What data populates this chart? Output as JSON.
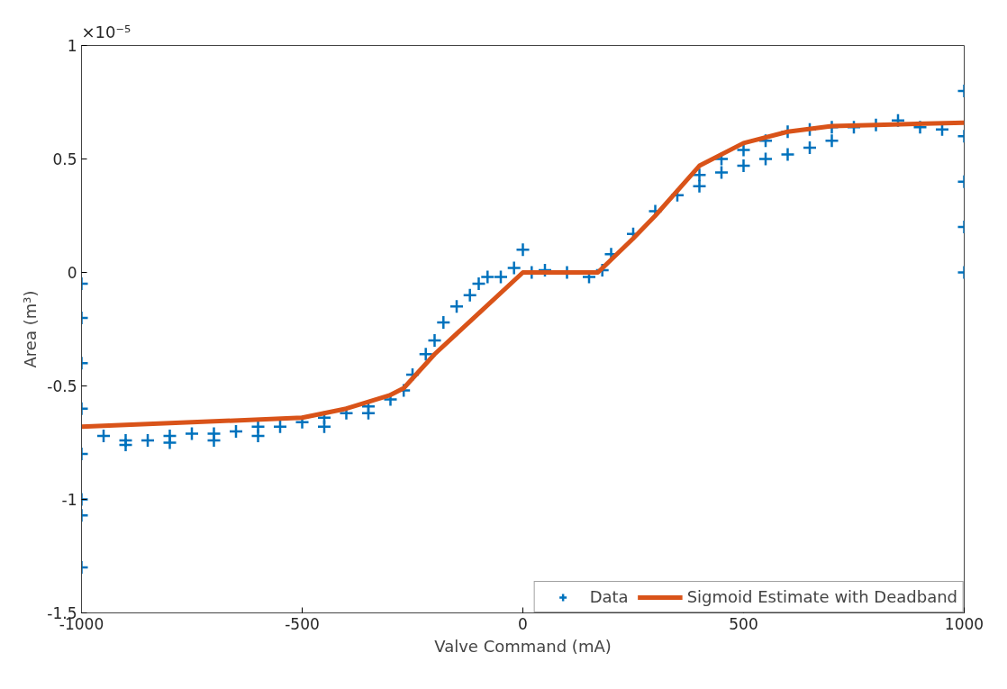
{
  "chart_data": {
    "type": "scatter",
    "xlabel": "Valve Command (mA)",
    "ylabel": "Area (m³)",
    "annotations": [
      "×10⁻⁵"
    ],
    "xlim": [
      -1000,
      1000
    ],
    "xticks": [
      -1000,
      -500,
      0,
      500,
      1000
    ],
    "ylim": [
      -1.5,
      1
    ],
    "yticks": [
      -1.5,
      -1,
      -0.5,
      0,
      0.5,
      1
    ],
    "grid": false,
    "legend": "bottom right",
    "series": [
      {
        "name": "Data",
        "marker": "cross",
        "color": "#0072bd",
        "x": [
          -1000,
          -1000,
          -1000,
          -1000,
          -1000,
          -1000,
          -1000,
          -1000,
          -950,
          -900,
          -850,
          -800,
          -750,
          -700,
          -650,
          -600,
          -550,
          -500,
          -450,
          -400,
          -350,
          -300,
          -270,
          -250,
          -220,
          -200,
          -180,
          -150,
          -120,
          -100,
          -80,
          -50,
          -20,
          0,
          20,
          50,
          100,
          150,
          180,
          200,
          250,
          300,
          350,
          400,
          450,
          500,
          550,
          600,
          650,
          700,
          750,
          800,
          850,
          900,
          950,
          -900,
          -800,
          -700,
          -600,
          -450,
          -350,
          400,
          450,
          500,
          550,
          600,
          650,
          700,
          1000,
          1000,
          1000,
          1000,
          1000
        ],
        "values": [
          -0.05,
          -0.2,
          -0.4,
          -0.6,
          -0.8,
          -1.0,
          -1.07,
          -1.3,
          -0.72,
          -0.74,
          -0.74,
          -0.72,
          -0.71,
          -0.71,
          -0.7,
          -0.68,
          -0.68,
          -0.66,
          -0.64,
          -0.62,
          -0.59,
          -0.56,
          -0.52,
          -0.45,
          -0.36,
          -0.3,
          -0.22,
          -0.15,
          -0.1,
          -0.05,
          -0.02,
          -0.02,
          0.02,
          0.1,
          0.0,
          0.01,
          0.0,
          -0.02,
          0.01,
          0.08,
          0.17,
          0.27,
          0.34,
          0.43,
          0.5,
          0.54,
          0.58,
          0.62,
          0.63,
          0.64,
          0.64,
          0.65,
          0.67,
          0.64,
          0.63,
          -0.76,
          -0.75,
          -0.74,
          -0.72,
          -0.68,
          -0.62,
          0.38,
          0.44,
          0.47,
          0.5,
          0.52,
          0.55,
          0.58,
          0.0,
          0.2,
          0.4,
          0.6,
          0.8
        ]
      },
      {
        "name": "Sigmoid Estimate with Deadband",
        "type": "line",
        "marker": "none",
        "color": "#d95319",
        "x": [
          -1000,
          -500,
          -400,
          -300,
          -270,
          -200,
          -100,
          0,
          170,
          250,
          300,
          400,
          500,
          600,
          700,
          800,
          1000
        ],
        "values": [
          -0.68,
          -0.64,
          -0.6,
          -0.54,
          -0.51,
          -0.36,
          -0.18,
          0,
          0,
          0.15,
          0.25,
          0.47,
          0.57,
          0.62,
          0.645,
          0.65,
          0.66
        ]
      }
    ]
  }
}
